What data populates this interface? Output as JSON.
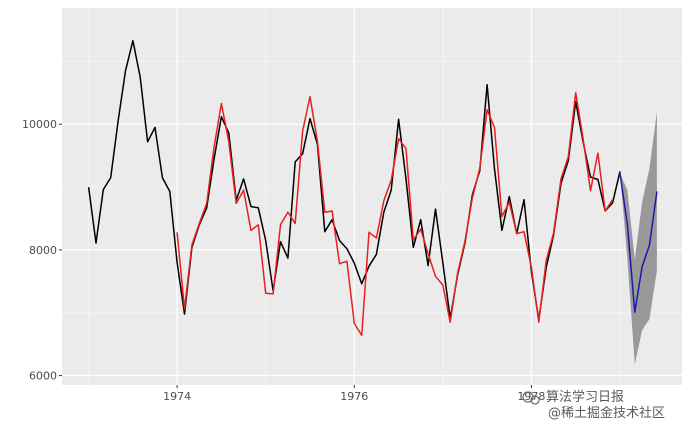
{
  "chart_data": {
    "type": "line",
    "title": "",
    "xlabel": "",
    "ylabel": "",
    "xlim": [
      1972.7,
      1979.7
    ],
    "ylim": [
      5850,
      11850
    ],
    "x_ticks": [
      1974,
      1976,
      1978
    ],
    "x_tick_labels": [
      "1974",
      "1976",
      "1978"
    ],
    "y_ticks": [
      6000,
      8000,
      10000
    ],
    "y_tick_labels": [
      "6000",
      "8000",
      "10000"
    ],
    "grid": true,
    "background": "#ebebeb",
    "series": [
      {
        "color": "#000000",
        "x_start": 1973.0,
        "x_step": 0.0833333,
        "values": [
          9000,
          8110,
          8960,
          9150,
          10050,
          10850,
          11330,
          10750,
          9720,
          9950,
          9150,
          8930,
          7800,
          6980,
          8040,
          8400,
          8670,
          9440,
          10120,
          9860,
          8790,
          9130,
          8690,
          8670,
          8150,
          7350,
          8130,
          7870,
          9400,
          9530,
          10090,
          9680,
          8290,
          8480,
          8150,
          8020,
          7790,
          7460,
          7740,
          7930,
          8600,
          8950,
          10080,
          9130,
          8040,
          8480,
          7750,
          8650,
          7790,
          6910,
          7600,
          8110,
          8880,
          9260,
          10630,
          9290,
          8310,
          8850,
          8260,
          8800,
          7650,
          6890,
          7720,
          8240,
          9060,
          9420,
          10360,
          9720,
          9160,
          9120,
          8620,
          8750,
          9250
        ]
      },
      {
        "color": "#e8201f",
        "x_start": 1974.0,
        "x_step": 0.0833333,
        "values": [
          8280,
          7060,
          8080,
          8420,
          8740,
          9630,
          10330,
          9720,
          8740,
          8950,
          8310,
          8400,
          7310,
          7300,
          8400,
          8600,
          8420,
          9890,
          10440,
          9730,
          8600,
          8620,
          7780,
          7820,
          6830,
          6640,
          8280,
          8190,
          8780,
          9110,
          9770,
          9610,
          8160,
          8330,
          7940,
          7580,
          7440,
          6850,
          7630,
          8140,
          8830,
          9300,
          10230,
          9950,
          8530,
          8760,
          8260,
          8290,
          7720,
          6850,
          7830,
          8270,
          9130,
          9480,
          10500,
          9770,
          8940,
          9540,
          8620,
          8800
        ]
      },
      {
        "color": "#1a1aaa",
        "x_start": 1979.0,
        "x_step": 0.0833333,
        "values": [
          9220,
          8400,
          7010,
          7730,
          8080,
          8930
        ]
      }
    ],
    "ribbon": {
      "color": "#999999",
      "x_start": 1979.0,
      "x_step": 0.0833333,
      "lower": [
        9220,
        7850,
        6180,
        6720,
        6900,
        7670
      ],
      "upper": [
        9220,
        8950,
        7850,
        8760,
        9300,
        10200
      ]
    }
  },
  "watermark": {
    "line1": "算法学习日报",
    "line2": "@稀土掘金技术社区"
  }
}
